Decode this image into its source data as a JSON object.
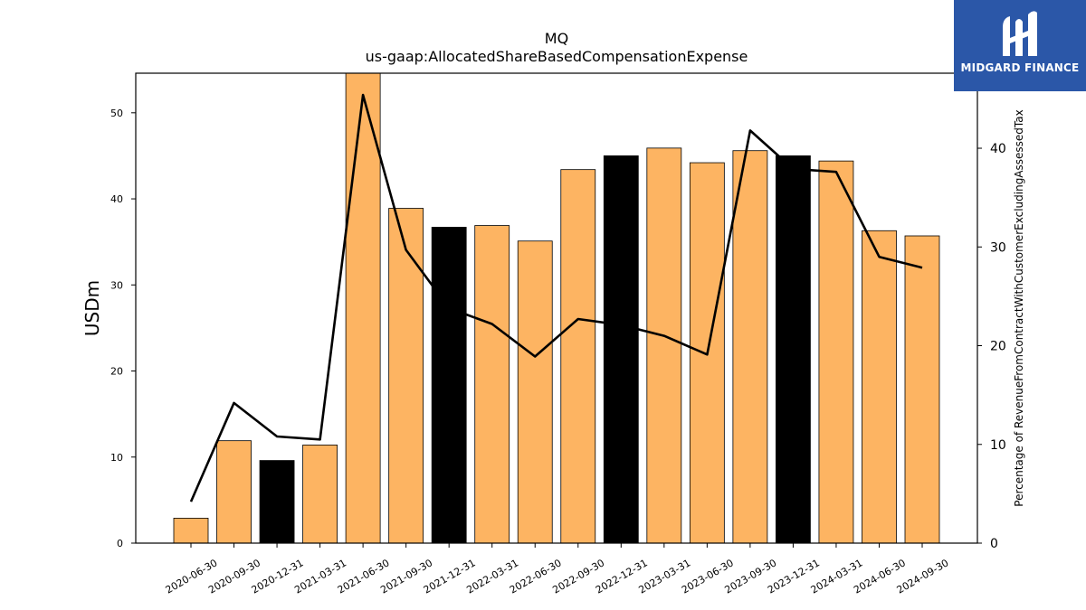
{
  "chart_data": {
    "type": "bar",
    "title": "MQ",
    "subtitle": "us-gaap:AllocatedShareBasedCompensationExpense",
    "ylabel": "USDm",
    "y2label": "Percentage of RevenueFromContractWithCustomerExcludingAssessedTax",
    "ylim": [
      0,
      54.6
    ],
    "y2lim": [
      0,
      47.6
    ],
    "yticks": [
      0,
      10,
      20,
      30,
      40,
      50
    ],
    "y2ticks": [
      0,
      10,
      20,
      30,
      40
    ],
    "categories": [
      "2020-06-30",
      "2020-09-30",
      "2020-12-31",
      "2021-03-31",
      "2021-06-30",
      "2021-09-30",
      "2021-12-31",
      "2022-03-31",
      "2022-06-30",
      "2022-09-30",
      "2022-12-31",
      "2023-03-31",
      "2023-06-30",
      "2023-09-30",
      "2023-12-31",
      "2024-03-31",
      "2024-06-30",
      "2024-09-30"
    ],
    "series": [
      {
        "type": "bar",
        "values": [
          2.9,
          11.9,
          9.6,
          11.4,
          54.6,
          38.9,
          36.7,
          36.9,
          35.1,
          43.4,
          45.0,
          45.9,
          44.2,
          45.6,
          45.0,
          44.4,
          36.3,
          35.7
        ],
        "colors": [
          "#fdb462",
          "#fdb462",
          "#000000",
          "#fdb462",
          "#fdb462",
          "#fdb462",
          "#000000",
          "#fdb462",
          "#fdb462",
          "#fdb462",
          "#000000",
          "#fdb462",
          "#fdb462",
          "#fdb462",
          "#000000",
          "#fdb462",
          "#fdb462",
          "#fdb462"
        ]
      },
      {
        "type": "line",
        "axis": "right",
        "color": "#000000",
        "values": [
          4.2,
          14.2,
          10.8,
          10.5,
          45.4,
          29.7,
          23.8,
          22.2,
          18.9,
          22.7,
          22.1,
          21.0,
          19.1,
          41.8,
          37.9,
          37.6,
          29.0,
          27.9
        ]
      }
    ],
    "grid": false,
    "legend": "none"
  },
  "logo": {
    "text": "MIDGARD FINANCE",
    "background": "#2b57a8"
  }
}
